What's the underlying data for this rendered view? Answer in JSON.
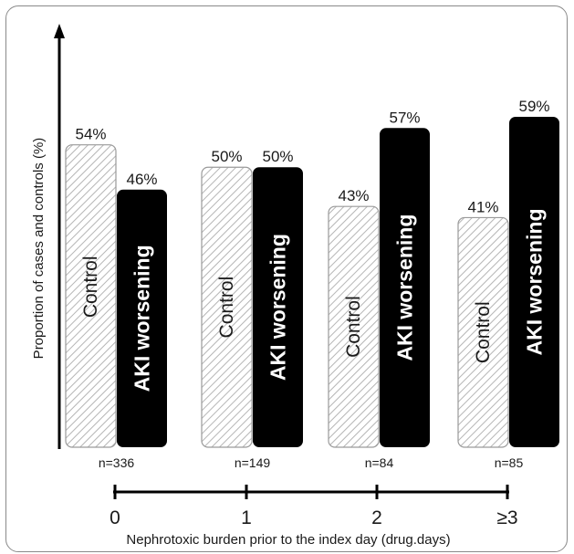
{
  "chart_data": {
    "type": "bar",
    "ylabel": "Proportion of cases and controls (%)",
    "xlabel": "Nephrotoxic burden prior to the index day (drug.days)",
    "ylim": [
      0,
      60
    ],
    "grid": false,
    "categories": [
      "0",
      "1",
      "2",
      "≥3"
    ],
    "n_labels": [
      "n=336",
      "n=149",
      "n=84",
      "n=85"
    ],
    "series": [
      {
        "name": "Control",
        "values": [
          54,
          50,
          43,
          41
        ],
        "value_labels": [
          "54%",
          "50%",
          "43%",
          "41%"
        ],
        "color": "#d9d9d9",
        "pattern": "diagonal-hatch"
      },
      {
        "name": "AKI worsening",
        "values": [
          46,
          50,
          57,
          59
        ],
        "value_labels": [
          "46%",
          "50%",
          "57%",
          "59%"
        ],
        "color": "#000000"
      }
    ]
  }
}
